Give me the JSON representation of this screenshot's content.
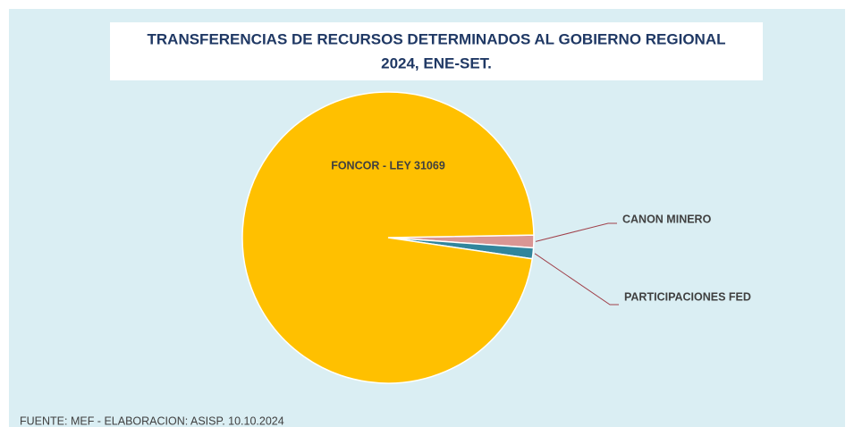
{
  "chart_data": {
    "type": "pie",
    "title": [
      "TRANSFERENCIAS DE RECURSOS DETERMINADOS AL GOBIERNO REGIONAL",
      "2024, ENE-SET."
    ],
    "categories": [
      "CANON MINERO",
      "PARTICIPACIONES  FED",
      "FONCOR - LEY 31069"
    ],
    "values": [
      1.4,
      1.2,
      97.4
    ],
    "colors": [
      "#d99694",
      "#31859c",
      "#ffc000"
    ],
    "source": "FUENTE:  MEF - ELABORACION:  ASISP. 10.10.2024"
  }
}
